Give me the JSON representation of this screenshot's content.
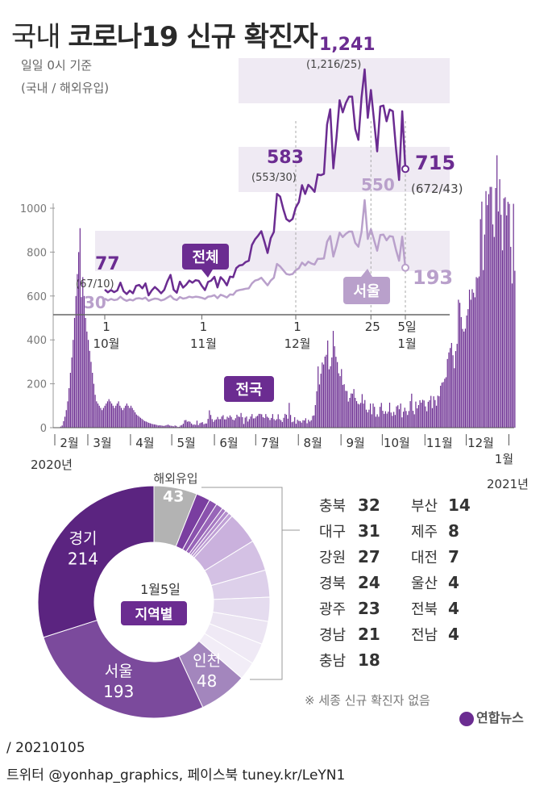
{
  "header": {
    "title_prefix": "국내",
    "title_main": "코로나19 신규 확진자",
    "subtitle_1": "일일 0시 기준",
    "subtitle_2": "(국내 / 해외유입)"
  },
  "chart_data": [
    {
      "type": "bar",
      "title": "전국",
      "yticks": [
        0,
        200,
        400,
        600,
        800,
        1000
      ],
      "ylim": [
        0,
        1300
      ],
      "xlabels": [
        "2월",
        "3월",
        "4월",
        "5월",
        "6월",
        "7월",
        "8월",
        "9월",
        "10월",
        "11월",
        "12월",
        "1월"
      ],
      "year_start_label": "2020년",
      "year_end_label": "2021년",
      "color": "#6b2c91",
      "daily_profile_note_values": [
        {
          "month": "2월",
          "values": [
            0,
            1,
            0,
            2,
            5,
            10,
            30,
            50,
            80,
            120,
            180,
            250,
            320,
            400,
            500,
            600,
            700,
            800,
            909,
            595,
            686,
            600,
            500,
            438
          ]
        },
        {
          "month": "3월",
          "values": [
            400,
            350,
            300,
            250,
            200,
            150,
            120,
            110,
            100,
            90,
            80,
            90,
            100,
            110,
            120,
            130,
            120,
            110,
            100,
            90,
            100,
            110,
            120,
            100,
            90,
            80,
            90,
            100,
            110,
            100,
            90
          ]
        },
        {
          "month": "4월",
          "values": [
            100,
            90,
            80,
            70,
            60,
            55,
            50,
            45,
            40,
            35,
            30,
            28,
            25,
            22,
            20,
            18,
            16,
            15,
            14,
            12,
            10,
            11,
            10,
            9,
            8,
            10,
            12,
            14,
            10,
            9
          ]
        },
        {
          "month": "5월",
          "values": [
            8,
            6,
            10,
            8,
            3,
            4,
            10,
            12,
            18,
            34,
            35,
            27,
            29,
            27,
            19,
            13,
            15,
            13,
            32,
            12,
            20,
            23,
            25,
            16,
            19,
            19,
            40,
            79,
            58,
            39,
            27
          ]
        },
        {
          "month": "6월",
          "values": [
            35,
            38,
            49,
            39,
            39,
            51,
            57,
            38,
            38,
            50,
            45,
            56,
            49,
            37,
            34,
            43,
            59,
            51,
            49,
            67,
            48,
            17,
            46,
            51,
            28,
            39,
            51,
            62,
            42,
            43
          ]
        },
        {
          "month": "7월",
          "values": [
            51,
            54,
            63,
            63,
            61,
            48,
            44,
            62,
            50,
            45,
            35,
            44,
            62,
            39,
            33,
            39,
            61,
            39,
            34,
            26,
            45,
            63,
            59,
            41,
            113,
            58,
            25,
            28,
            48,
            18,
            36
          ]
        },
        {
          "month": "8월",
          "values": [
            31,
            30,
            23,
            34,
            33,
            43,
            20,
            36,
            28,
            34,
            54,
            56,
            103,
            166,
            279,
            197,
            246,
            297,
            288,
            324,
            332,
            397,
            266,
            280,
            320,
            441,
            371,
            323,
            299,
            248,
            235
          ]
        },
        {
          "month": "9월",
          "values": [
            267,
            195,
            198,
            168,
            167,
            119,
            136,
            156,
            155,
            176,
            136,
            121,
            109,
            106,
            113,
            153,
            110,
            126,
            82,
            70,
            82,
            110,
            61,
            110,
            95,
            50,
            61,
            50,
            95,
            113
          ]
        },
        {
          "month": "10월",
          "values": [
            77,
            63,
            75,
            64,
            73,
            114,
            69,
            54,
            72,
            58,
            97,
            102,
            84,
            110,
            47,
            73,
            91,
            76,
            58,
            76,
            121,
            155,
            77,
            61,
            119,
            88,
            103,
            125,
            114,
            127,
            124
          ]
        },
        {
          "month": "11월",
          "values": [
            97,
            75,
            118,
            125,
            145,
            89,
            143,
            126,
            100,
            146,
            143,
            191,
            205,
            208,
            223,
            230,
            313,
            343,
            363,
            386,
            330,
            271,
            349,
            382,
            583,
            569,
            504,
            450,
            438,
            451
          ]
        },
        {
          "month": "12월",
          "values": [
            511,
            540,
            629,
            583,
            631,
            615,
            594,
            686,
            682,
            689,
            950,
            1030,
            718,
            880,
            1078,
            1014,
            1064,
            1097,
            1097,
            926,
            869,
            1092,
            1241,
            985,
            1132,
            970,
            808,
            1045,
            1050,
            967,
            1029
          ]
        },
        {
          "month": "1월",
          "values": [
            1020,
            824,
            657,
            1020,
            715
          ]
        }
      ],
      "annotation_label": "전국"
    },
    {
      "type": "line",
      "title": "",
      "x_tick_labels": [
        "1\n10월",
        "1\n11월",
        "1\n12월",
        "25",
        "5일\n1월"
      ],
      "yticks_shown": [
        600,
        800,
        1000
      ],
      "series": [
        {
          "name": "전체",
          "color": "#6b2c91",
          "start_label": "77",
          "start_sub": "(67/10)",
          "mid_label": "583",
          "mid_sub": "(553/30)",
          "peak_label": "1,241",
          "peak_sub": "(1,216/25)",
          "end_label": "715",
          "end_sub": "(672/43)",
          "values": [
            77,
            63,
            75,
            64,
            73,
            114,
            69,
            54,
            72,
            58,
            97,
            102,
            84,
            110,
            47,
            73,
            91,
            76,
            58,
            76,
            121,
            155,
            77,
            61,
            119,
            88,
            103,
            125,
            114,
            127,
            124,
            97,
            75,
            118,
            125,
            145,
            89,
            143,
            126,
            100,
            146,
            143,
            191,
            205,
            208,
            223,
            230,
            313,
            343,
            363,
            386,
            330,
            271,
            349,
            382,
            583,
            569,
            504,
            450,
            438,
            451,
            511,
            540,
            629,
            583,
            631,
            615,
            594,
            686,
            682,
            689,
            950,
            1030,
            718,
            880,
            1078,
            1014,
            1064,
            1097,
            1097,
            926,
            869,
            1092,
            1241,
            985,
            1132,
            970,
            808,
            1045,
            1050,
            967,
            1029,
            1020,
            824,
            657,
            1020,
            715
          ]
        },
        {
          "name": "서울",
          "color": "#b9a0cb",
          "start_label": "30",
          "peak_label": "550",
          "end_label": "193",
          "values": [
            30,
            20,
            28,
            22,
            25,
            40,
            26,
            18,
            25,
            20,
            30,
            32,
            28,
            35,
            18,
            25,
            30,
            28,
            20,
            25,
            35,
            45,
            28,
            22,
            38,
            30,
            33,
            40,
            36,
            40,
            38,
            34,
            28,
            40,
            42,
            48,
            32,
            50,
            44,
            36,
            52,
            50,
            70,
            75,
            78,
            82,
            84,
            110,
            125,
            130,
            140,
            120,
            100,
            125,
            140,
            213,
            200,
            180,
            160,
            156,
            160,
            180,
            190,
            220,
            205,
            225,
            215,
            210,
            240,
            240,
            242,
            330,
            360,
            252,
            310,
            378,
            355,
            372,
            384,
            384,
            324,
            304,
            382,
            550,
            345,
            396,
            340,
            283,
            366,
            368,
            338,
            360,
            357,
            288,
            230,
            357,
            193
          ]
        }
      ]
    },
    {
      "type": "pie",
      "title": "지역별",
      "date_label": "1월5일",
      "categories": [
        "해외유입",
        "부산",
        "제주",
        "대전",
        "울산",
        "전북",
        "전남",
        "충북",
        "대구",
        "강원",
        "경북",
        "광주",
        "경남",
        "충남",
        "인천",
        "서울",
        "경기"
      ],
      "values": [
        43,
        14,
        8,
        7,
        4,
        4,
        4,
        32,
        31,
        27,
        24,
        23,
        21,
        18,
        48,
        193,
        214
      ],
      "inner_labels": {
        "해외유입": "43",
        "인천": "48",
        "서울": "193",
        "경기": "214"
      }
    }
  ],
  "regions_left": [
    {
      "name": "충북",
      "value": "32"
    },
    {
      "name": "대구",
      "value": "31"
    },
    {
      "name": "강원",
      "value": "27"
    },
    {
      "name": "경북",
      "value": "24"
    },
    {
      "name": "광주",
      "value": "23"
    },
    {
      "name": "경남",
      "value": "21"
    },
    {
      "name": "충남",
      "value": "18"
    }
  ],
  "regions_right": [
    {
      "name": "부산",
      "value": "14"
    },
    {
      "name": "제주",
      "value": "8"
    },
    {
      "name": "대전",
      "value": "7"
    },
    {
      "name": "울산",
      "value": "4"
    },
    {
      "name": "전북",
      "value": "4"
    },
    {
      "name": "전남",
      "value": "4"
    }
  ],
  "note": "※ 세종 신규 확진자 없음",
  "logo": "연합뉴스",
  "footer": {
    "line1": "/ 20210105",
    "line2": "트위터 @yonhap_graphics, 페이스북 tuney.kr/LeYN1"
  },
  "colors": {
    "dark": "#6b2c91",
    "mid": "#8e5cae",
    "light": "#b9a0cb",
    "pale": "#efeaf3",
    "gray": "#b3b3b3"
  }
}
